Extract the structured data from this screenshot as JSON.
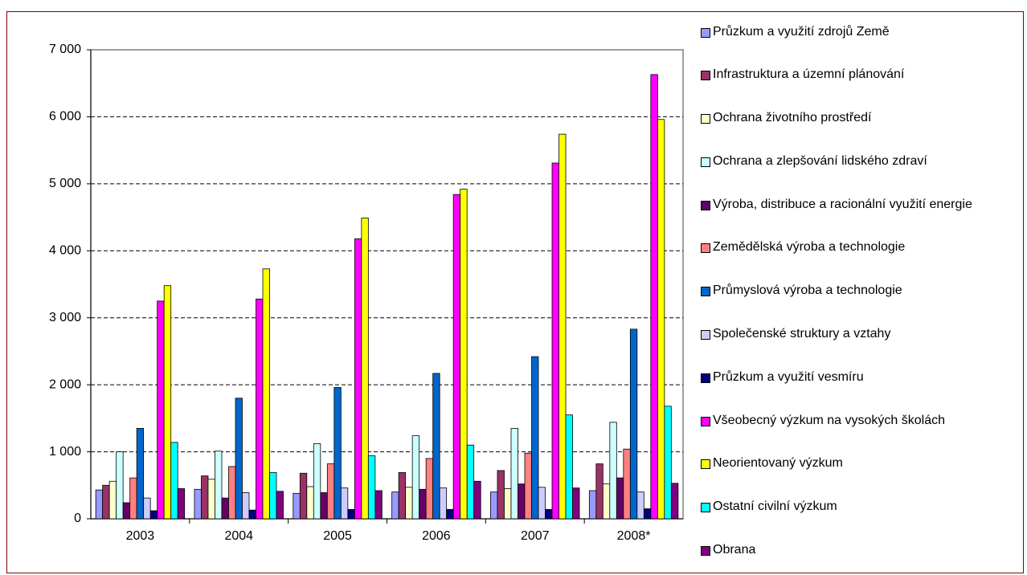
{
  "chart_data": {
    "type": "bar",
    "categories": [
      "2003",
      "2004",
      "2005",
      "2006",
      "2007",
      "2008*"
    ],
    "ylim": [
      0,
      7000
    ],
    "yticks": [
      0,
      {
        "value": 1000,
        "label": "1 000"
      },
      {
        "value": 2000,
        "label": "2 000"
      },
      {
        "value": 3000,
        "label": "3 000"
      },
      {
        "value": 4000,
        "label": "4 000"
      },
      {
        "value": 5000,
        "label": "5 000"
      },
      {
        "value": 6000,
        "label": "6 000"
      },
      {
        "value": 7000,
        "label": "7 000"
      }
    ],
    "grid": true,
    "legend": "right",
    "series": [
      {
        "name": "Průzkum a využití zdrojů Země",
        "color": "#9999FF",
        "values": [
          430,
          440,
          380,
          400,
          400,
          420
        ]
      },
      {
        "name": "Infrastruktura a územní plánování",
        "color": "#993366",
        "values": [
          500,
          640,
          680,
          690,
          720,
          820
        ]
      },
      {
        "name": "Ochrana životního prostředí",
        "color": "#FFFFCC",
        "values": [
          560,
          590,
          480,
          470,
          450,
          520
        ]
      },
      {
        "name": "Ochrana a zlepšování lidského zdraví",
        "color": "#CCFFFF",
        "values": [
          1000,
          1010,
          1120,
          1240,
          1350,
          1440
        ]
      },
      {
        "name": "Výroba, distribuce a racionální využití energie",
        "color": "#660066",
        "values": [
          240,
          310,
          390,
          440,
          520,
          610
        ]
      },
      {
        "name": "Zemědělská výroba a technologie",
        "color": "#FF8080",
        "values": [
          610,
          780,
          820,
          900,
          980,
          1040
        ]
      },
      {
        "name": "Průmyslová výroba a technologie",
        "color": "#0066CC",
        "values": [
          1350,
          1800,
          1960,
          2170,
          2420,
          2830
        ]
      },
      {
        "name": "Společenské struktury a vztahy",
        "color": "#CCCCFF",
        "values": [
          310,
          390,
          460,
          460,
          470,
          400
        ]
      },
      {
        "name": "Průzkum a využití vesmíru",
        "color": "#000080",
        "values": [
          120,
          130,
          140,
          140,
          140,
          150
        ]
      },
      {
        "name": "Všeobecný výzkum na vysokých školách",
        "color": "#FF00FF",
        "values": [
          3250,
          3280,
          4180,
          4840,
          5310,
          6630
        ]
      },
      {
        "name": "Neorientovaný výzkum",
        "color": "#FFFF00",
        "values": [
          3480,
          3730,
          4490,
          4920,
          5740,
          5960
        ]
      },
      {
        "name": "Ostatní civilní výzkum",
        "color": "#00FFFF",
        "values": [
          1140,
          690,
          940,
          1100,
          1550,
          1680
        ]
      },
      {
        "name": "Obrana",
        "color": "#800080",
        "values": [
          450,
          410,
          420,
          560,
          460,
          530
        ]
      }
    ]
  }
}
